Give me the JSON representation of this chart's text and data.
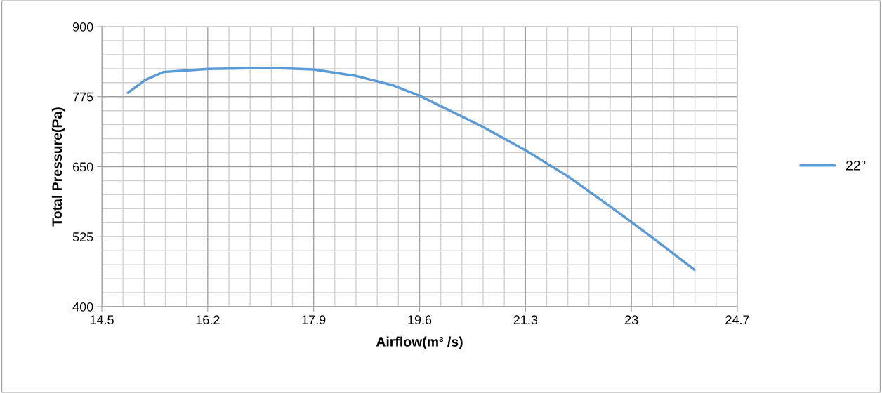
{
  "chart_data": {
    "type": "line",
    "xlabel": "Airflow(m³ /s)",
    "ylabel": "Total Pressure(Pa)",
    "x": [
      14.92,
      15.2,
      15.49,
      16.21,
      17.22,
      17.9,
      18.58,
      19.18,
      19.59,
      20.6,
      21.32,
      21.99,
      22.67,
      23.33,
      24.01
    ],
    "series": [
      {
        "name": "22°",
        "color": "#5b9bd5",
        "values": [
          782,
          805,
          819,
          824.5,
          826.5,
          823.6,
          812,
          795,
          777,
          722,
          678,
          632,
          578,
          524,
          466
        ]
      }
    ],
    "xlim": [
      14.5,
      24.7
    ],
    "xticks": [
      14.5,
      16.2,
      17.9,
      19.6,
      21.3,
      23,
      24.7
    ],
    "ylim": [
      400,
      900
    ],
    "yticks": [
      400,
      525,
      650,
      775,
      900
    ],
    "grid": true,
    "legend": "right",
    "marker": "none",
    "line_style": "solid"
  }
}
